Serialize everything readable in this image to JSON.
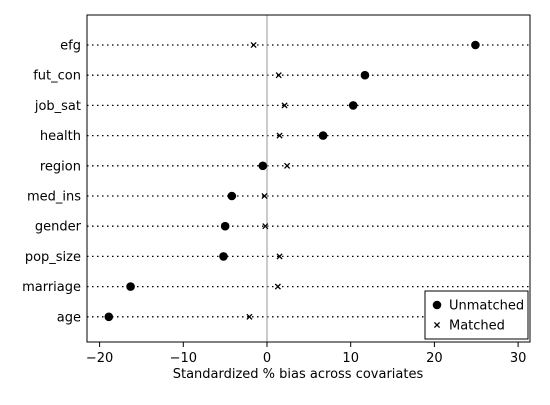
{
  "chart_data": {
    "type": "scatter",
    "xlabel": "Standardized % bias across covariates",
    "ylabel": "",
    "xlim": [
      -22,
      31
    ],
    "xticks": [
      -20,
      -10,
      0,
      10,
      20,
      30
    ],
    "xtick_labels": [
      "−20",
      "−10",
      "0",
      "10",
      "20",
      "30"
    ],
    "grid": "dotted horizontal per covariate",
    "reference_line_x": 0,
    "legend_position": "bottom-right",
    "categories": [
      "efg",
      "fut_con",
      "job_sat",
      "health",
      "region",
      "med_ins",
      "gender",
      "pop_size",
      "marriage",
      "age"
    ],
    "series": [
      {
        "name": "Unmatched",
        "marker": "filled-circle",
        "values": [
          24.9,
          11.7,
          10.3,
          6.7,
          -0.5,
          -4.2,
          -5.0,
          -5.2,
          -16.3,
          -18.9
        ]
      },
      {
        "name": "Matched",
        "marker": "x",
        "values": [
          -1.6,
          1.4,
          2.1,
          1.5,
          2.4,
          -0.3,
          -0.2,
          1.5,
          1.3,
          -2.1
        ]
      }
    ],
    "colors": {
      "background": "#ffffff",
      "frame": "#000000",
      "grid": "#000000",
      "reference_line": "#a0a0a0",
      "marker": "#000000"
    }
  }
}
